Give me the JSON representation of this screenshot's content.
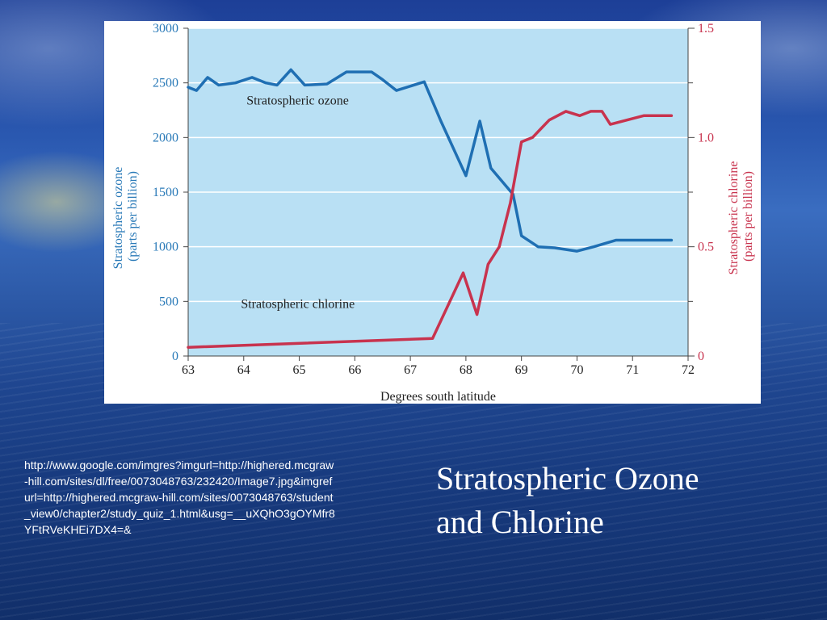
{
  "slide": {
    "title_line1": "Stratospheric Ozone",
    "title_line2": "and Chlorine",
    "source_url": "http://www.google.com/imgres?imgurl=http://highered.mcgraw-hill.com/sites/dl/free/0073048763/232420/Image7.jpg&imgrefurl=http://highered.mcgraw-hill.com/sites/0073048763/student_view0/chapter2/study_quiz_1.html&usg=__uXQhO3gOYMfr8YFtRVeKHEi7DX4=&"
  },
  "chart_data": {
    "type": "line",
    "xlabel": "Degrees south latitude",
    "ylabel_left_line1": "Stratospheric ozone",
    "ylabel_left_line2": "(parts per billion)",
    "ylabel_right_line1": "Stratospheric chlorine",
    "ylabel_right_line2": "(parts per billion)",
    "xlim": [
      63,
      72
    ],
    "ylim_left": [
      0,
      3000
    ],
    "ylim_right": [
      0,
      1.5
    ],
    "x_ticks": [
      "63",
      "64",
      "65",
      "66",
      "67",
      "68",
      "69",
      "70",
      "71",
      "72"
    ],
    "y_left_ticks": [
      "0",
      "500",
      "1000",
      "1500",
      "2000",
      "2500",
      "3000"
    ],
    "y_right_ticks": [
      "0",
      "0.5",
      "1.0",
      "1.5"
    ],
    "grid": true,
    "colors": {
      "plot_background": "#b9e0f4",
      "ozone": "#1f6fb3",
      "chlorine": "#c8334e",
      "left_axis_text": "#2a7ab8",
      "right_axis_text": "#c8334e",
      "grid": "#ffffff"
    },
    "series": [
      {
        "name": "Stratospheric ozone",
        "axis": "left",
        "label_x": 64.05,
        "label_y": 2300,
        "x": [
          63.0,
          63.15,
          63.35,
          63.55,
          63.85,
          64.15,
          64.4,
          64.6,
          64.85,
          65.1,
          65.5,
          65.85,
          66.3,
          66.5,
          66.75,
          67.25,
          67.55,
          68.0,
          68.25,
          68.45,
          68.85,
          69.0,
          69.3,
          69.6,
          70.0,
          70.3,
          70.7,
          71.2,
          71.7
        ],
        "values": [
          2460,
          2430,
          2550,
          2480,
          2500,
          2550,
          2500,
          2480,
          2620,
          2480,
          2490,
          2600,
          2600,
          2530,
          2430,
          2510,
          2150,
          1650,
          2150,
          1720,
          1480,
          1100,
          1000,
          990,
          960,
          1000,
          1060,
          1060,
          1060
        ]
      },
      {
        "name": "Stratospheric chlorine",
        "axis": "right",
        "label_x": 63.95,
        "label_y": 0.22,
        "x": [
          63.0,
          67.4,
          67.95,
          68.2,
          68.4,
          68.6,
          68.8,
          69.0,
          69.2,
          69.35,
          69.5,
          69.65,
          69.8,
          70.05,
          70.25,
          70.45,
          70.6,
          70.9,
          71.2,
          71.7
        ],
        "values": [
          0.04,
          0.08,
          0.38,
          0.19,
          0.42,
          0.5,
          0.7,
          0.98,
          1.0,
          1.04,
          1.08,
          1.1,
          1.12,
          1.1,
          1.12,
          1.12,
          1.06,
          1.08,
          1.1,
          1.1
        ]
      }
    ]
  }
}
